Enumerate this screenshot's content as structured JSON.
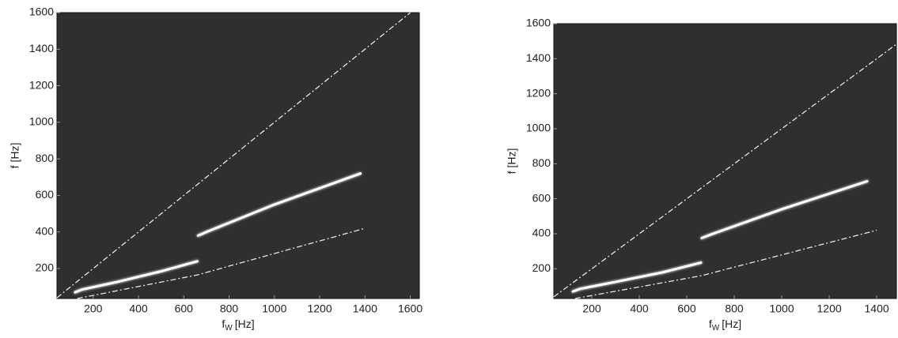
{
  "chart_data": [
    {
      "type": "line",
      "background": "#2f2f2f",
      "x_label": {
        "base": "f",
        "subscript": "W",
        "unit": "[Hz]"
      },
      "y_label": "f [Hz]",
      "xlim": [
        40,
        1640
      ],
      "ylim": [
        36,
        1600
      ],
      "xticks": [
        200,
        400,
        600,
        800,
        1000,
        1200,
        1400,
        1600
      ],
      "yticks": [
        200,
        400,
        600,
        800,
        1000,
        1200,
        1400,
        1600
      ],
      "series": [
        {
          "color": "#e8e8e8",
          "style": "dash-dot",
          "x": [
            40,
            1600
          ],
          "values": [
            40,
            1600
          ]
        },
        {
          "color": "#e8e8e8",
          "style": "dash-dot",
          "x": [
            130,
            660,
            1400
          ],
          "values": [
            36,
            165,
            420
          ]
        },
        {
          "color": "#ffffff",
          "style": "ridge",
          "x": [
            120,
            150,
            300,
            500,
            660
          ],
          "values": [
            70,
            85,
            125,
            185,
            240
          ]
        },
        {
          "color": "#ffffff",
          "style": "ridge",
          "x": [
            663,
            700,
            1000,
            1380
          ],
          "values": [
            380,
            400,
            550,
            720
          ]
        }
      ]
    },
    {
      "type": "line",
      "background": "#2f2f2f",
      "x_label": {
        "base": "f",
        "subscript": "W",
        "unit": "[Hz]"
      },
      "y_label": "f [Hz]",
      "xlim": [
        40,
        1483
      ],
      "ylim": [
        30,
        1600
      ],
      "xticks": [
        200,
        400,
        600,
        800,
        1000,
        1200,
        1400
      ],
      "yticks": [
        200,
        400,
        600,
        800,
        1000,
        1200,
        1400,
        1600
      ],
      "series": [
        {
          "color": "#e8e8e8",
          "style": "dash-dot",
          "x": [
            40,
            1483
          ],
          "values": [
            40,
            1483
          ]
        },
        {
          "color": "#e8e8e8",
          "style": "dash-dot",
          "x": [
            130,
            660,
            1400
          ],
          "values": [
            30,
            160,
            420
          ]
        },
        {
          "color": "#ffffff",
          "style": "ridge",
          "x": [
            120,
            150,
            300,
            500,
            660
          ],
          "values": [
            70,
            85,
            125,
            180,
            235
          ]
        },
        {
          "color": "#ffffff",
          "style": "ridge",
          "x": [
            663,
            700,
            1000,
            1360
          ],
          "values": [
            375,
            395,
            540,
            700
          ]
        }
      ]
    }
  ]
}
